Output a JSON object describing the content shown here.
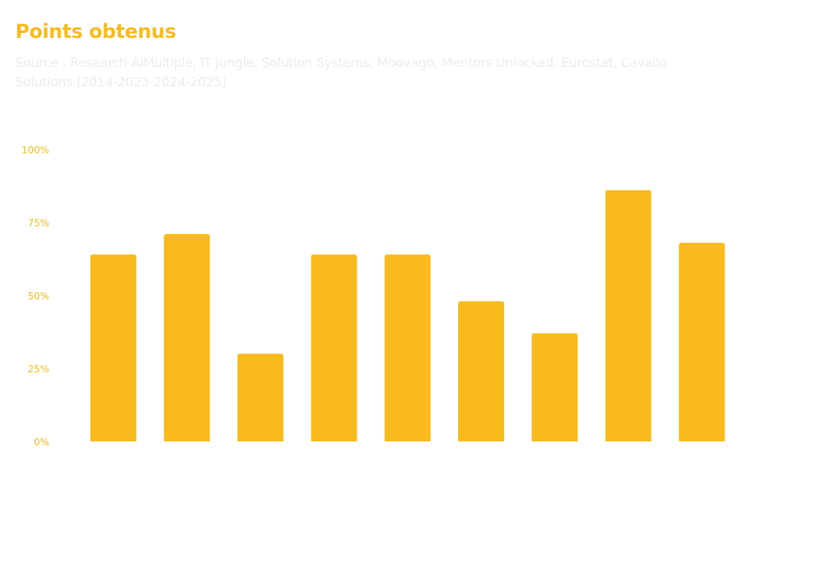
{
  "chart_data": {
    "type": "bar",
    "title": "Points obtenus",
    "subtitle": "Source : Research AIMultiple, IT Jungle, Solution Systems, Moovago, Mentors Unlocked, Eurostat, Cavailo Solutions  (2014-2023-2024-2025)",
    "categories": [
      "",
      "",
      "",
      "",
      "",
      "",
      "",
      "",
      ""
    ],
    "values": [
      64,
      71,
      30,
      64,
      64,
      48,
      37,
      86,
      68
    ],
    "xlabel": "",
    "ylabel": "",
    "ylim": [
      0,
      100
    ],
    "yticks": [
      "0%",
      "25%",
      "50%",
      "75%",
      "100%"
    ],
    "grid": false,
    "bar_color": "#f9bb1c"
  }
}
